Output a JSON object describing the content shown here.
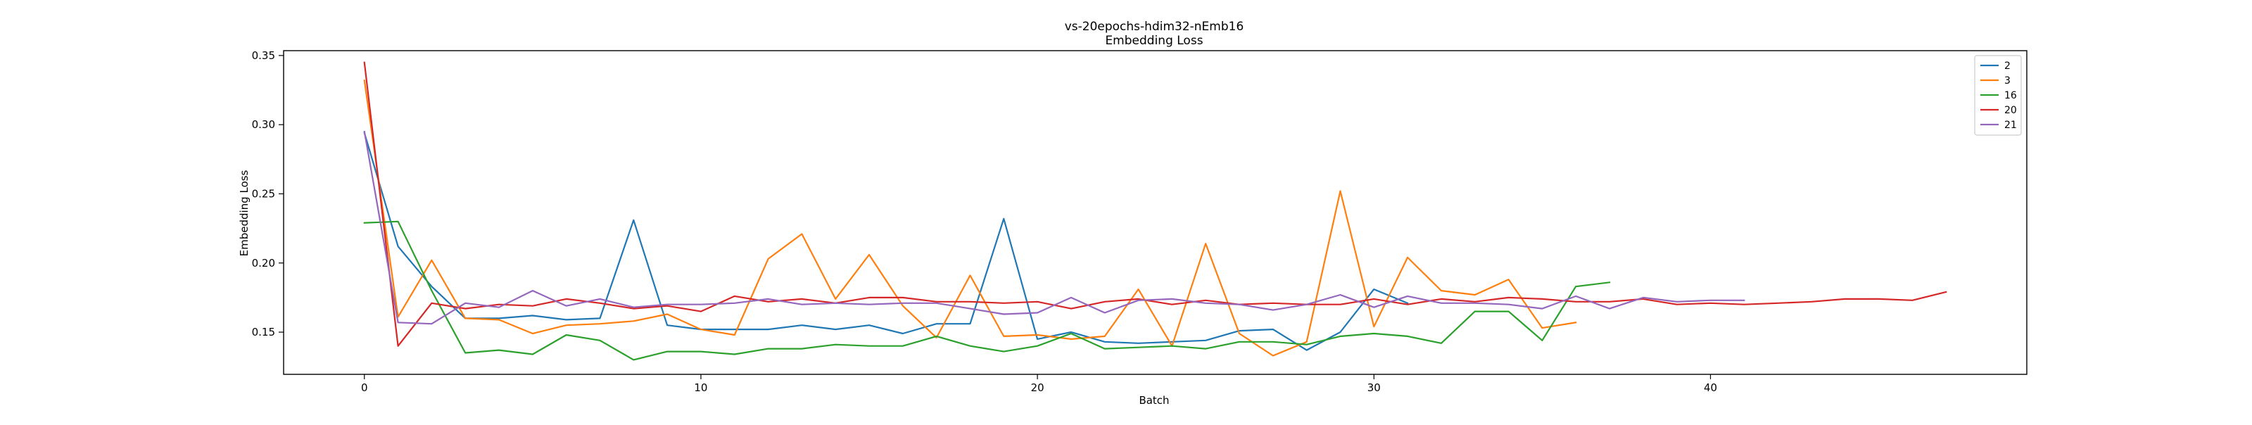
{
  "chart_data": {
    "type": "line",
    "title": "vs-20epochs-hdim32-nEmb16",
    "subtitle": "Embedding Loss",
    "xlabel": "Batch",
    "ylabel": "Embedding Loss",
    "xlim": [
      -2.4,
      49.4
    ],
    "ylim": [
      0.1195,
      0.3535
    ],
    "xticks": [
      0,
      10,
      20,
      30,
      40
    ],
    "yticks": [
      0.15,
      0.2,
      0.25,
      0.3,
      0.35
    ],
    "ytick_labels": [
      "0.15",
      "0.20",
      "0.25",
      "0.30",
      "0.35"
    ],
    "grid": false,
    "legend_position": "top-right",
    "series": [
      {
        "name": "2",
        "color": "#1f77b4",
        "values": [
          0.294,
          0.212,
          0.183,
          0.16,
          0.16,
          0.162,
          0.159,
          0.16,
          0.231,
          0.155,
          0.152,
          0.152,
          0.152,
          0.155,
          0.152,
          0.155,
          0.149,
          0.156,
          0.156,
          0.232,
          0.145,
          0.15,
          0.143,
          0.142,
          0.143,
          0.144,
          0.151,
          0.152,
          0.137,
          0.15,
          0.181,
          0.171
        ]
      },
      {
        "name": "3",
        "color": "#ff7f0e",
        "values": [
          0.332,
          0.161,
          0.202,
          0.16,
          0.159,
          0.149,
          0.155,
          0.156,
          0.158,
          0.163,
          0.152,
          0.148,
          0.203,
          0.221,
          0.174,
          0.206,
          0.169,
          0.146,
          0.191,
          0.147,
          0.148,
          0.145,
          0.147,
          0.181,
          0.14,
          0.214,
          0.149,
          0.133,
          0.143,
          0.252,
          0.154,
          0.204,
          0.18,
          0.177,
          0.188,
          0.153,
          0.157
        ]
      },
      {
        "name": "16",
        "color": "#2ca02c",
        "values": [
          0.229,
          0.23,
          0.18,
          0.135,
          0.137,
          0.134,
          0.148,
          0.144,
          0.13,
          0.136,
          0.136,
          0.134,
          0.138,
          0.138,
          0.141,
          0.14,
          0.14,
          0.147,
          0.14,
          0.136,
          0.14,
          0.149,
          0.138,
          0.139,
          0.14,
          0.138,
          0.143,
          0.143,
          0.141,
          0.147,
          0.149,
          0.147,
          0.142,
          0.165,
          0.165,
          0.144,
          0.183,
          0.186
        ]
      },
      {
        "name": "20",
        "color": "#d62728",
        "values": [
          0.345,
          0.14,
          0.171,
          0.167,
          0.17,
          0.169,
          0.174,
          0.171,
          0.167,
          0.169,
          0.165,
          0.176,
          0.172,
          0.174,
          0.171,
          0.175,
          0.175,
          0.172,
          0.172,
          0.171,
          0.172,
          0.167,
          0.172,
          0.174,
          0.17,
          0.173,
          0.17,
          0.171,
          0.17,
          0.17,
          0.174,
          0.17,
          0.174,
          0.172,
          0.175,
          0.174,
          0.172,
          0.172,
          0.174,
          0.17,
          0.171,
          0.17,
          0.171,
          0.172,
          0.174,
          0.174,
          0.173,
          0.179
        ]
      },
      {
        "name": "21",
        "color": "#9467bd",
        "values": [
          0.295,
          0.157,
          0.156,
          0.171,
          0.168,
          0.18,
          0.169,
          0.174,
          0.168,
          0.17,
          0.17,
          0.171,
          0.174,
          0.17,
          0.171,
          0.17,
          0.171,
          0.171,
          0.167,
          0.163,
          0.164,
          0.175,
          0.164,
          0.173,
          0.174,
          0.171,
          0.17,
          0.166,
          0.17,
          0.177,
          0.168,
          0.176,
          0.171,
          0.171,
          0.17,
          0.167,
          0.176,
          0.167,
          0.175,
          0.172,
          0.173,
          0.173
        ]
      }
    ]
  }
}
